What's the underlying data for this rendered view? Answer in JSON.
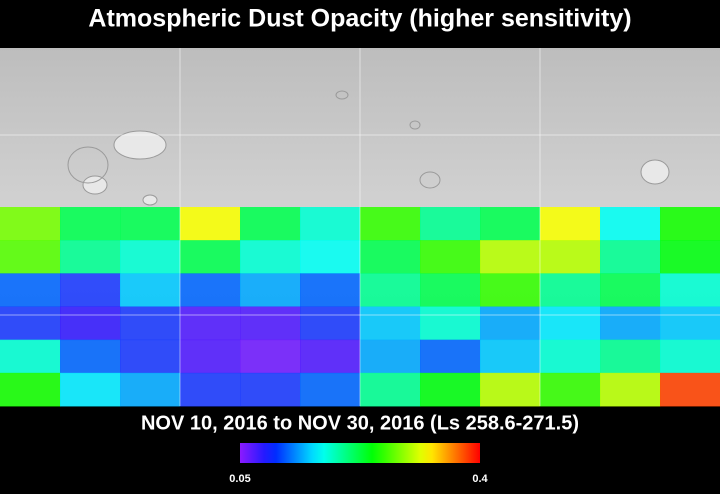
{
  "title": "Atmospheric Dust Opacity (higher sensitivity)",
  "caption": "NOV 10, 2016 to NOV 30, 2016 (Ls 258.6-271.5)",
  "colorbar": {
    "lim": [
      0.05,
      0.4
    ],
    "ticks": [
      0.05,
      0.4
    ]
  },
  "grid": {
    "values": [
      [
        0.28,
        0.22,
        0.22,
        0.32,
        0.22,
        0.18,
        0.26,
        0.2,
        0.22,
        0.32,
        0.17,
        0.25
      ],
      [
        0.27,
        0.2,
        0.18,
        0.22,
        0.18,
        0.17,
        0.22,
        0.26,
        0.3,
        0.3,
        0.2,
        0.24
      ],
      [
        0.12,
        0.1,
        0.15,
        0.12,
        0.14,
        0.12,
        0.2,
        0.22,
        0.26,
        0.2,
        0.22,
        0.18
      ],
      [
        0.1,
        0.08,
        0.1,
        0.07,
        0.07,
        0.1,
        0.15,
        0.18,
        0.14,
        0.16,
        0.14,
        0.15
      ],
      [
        0.18,
        0.12,
        0.1,
        0.07,
        0.06,
        0.07,
        0.14,
        0.12,
        0.15,
        0.18,
        0.2,
        0.18
      ],
      [
        0.25,
        0.16,
        0.14,
        0.1,
        0.1,
        0.12,
        0.2,
        0.24,
        0.3,
        0.26,
        0.3,
        0.38
      ]
    ]
  }
}
